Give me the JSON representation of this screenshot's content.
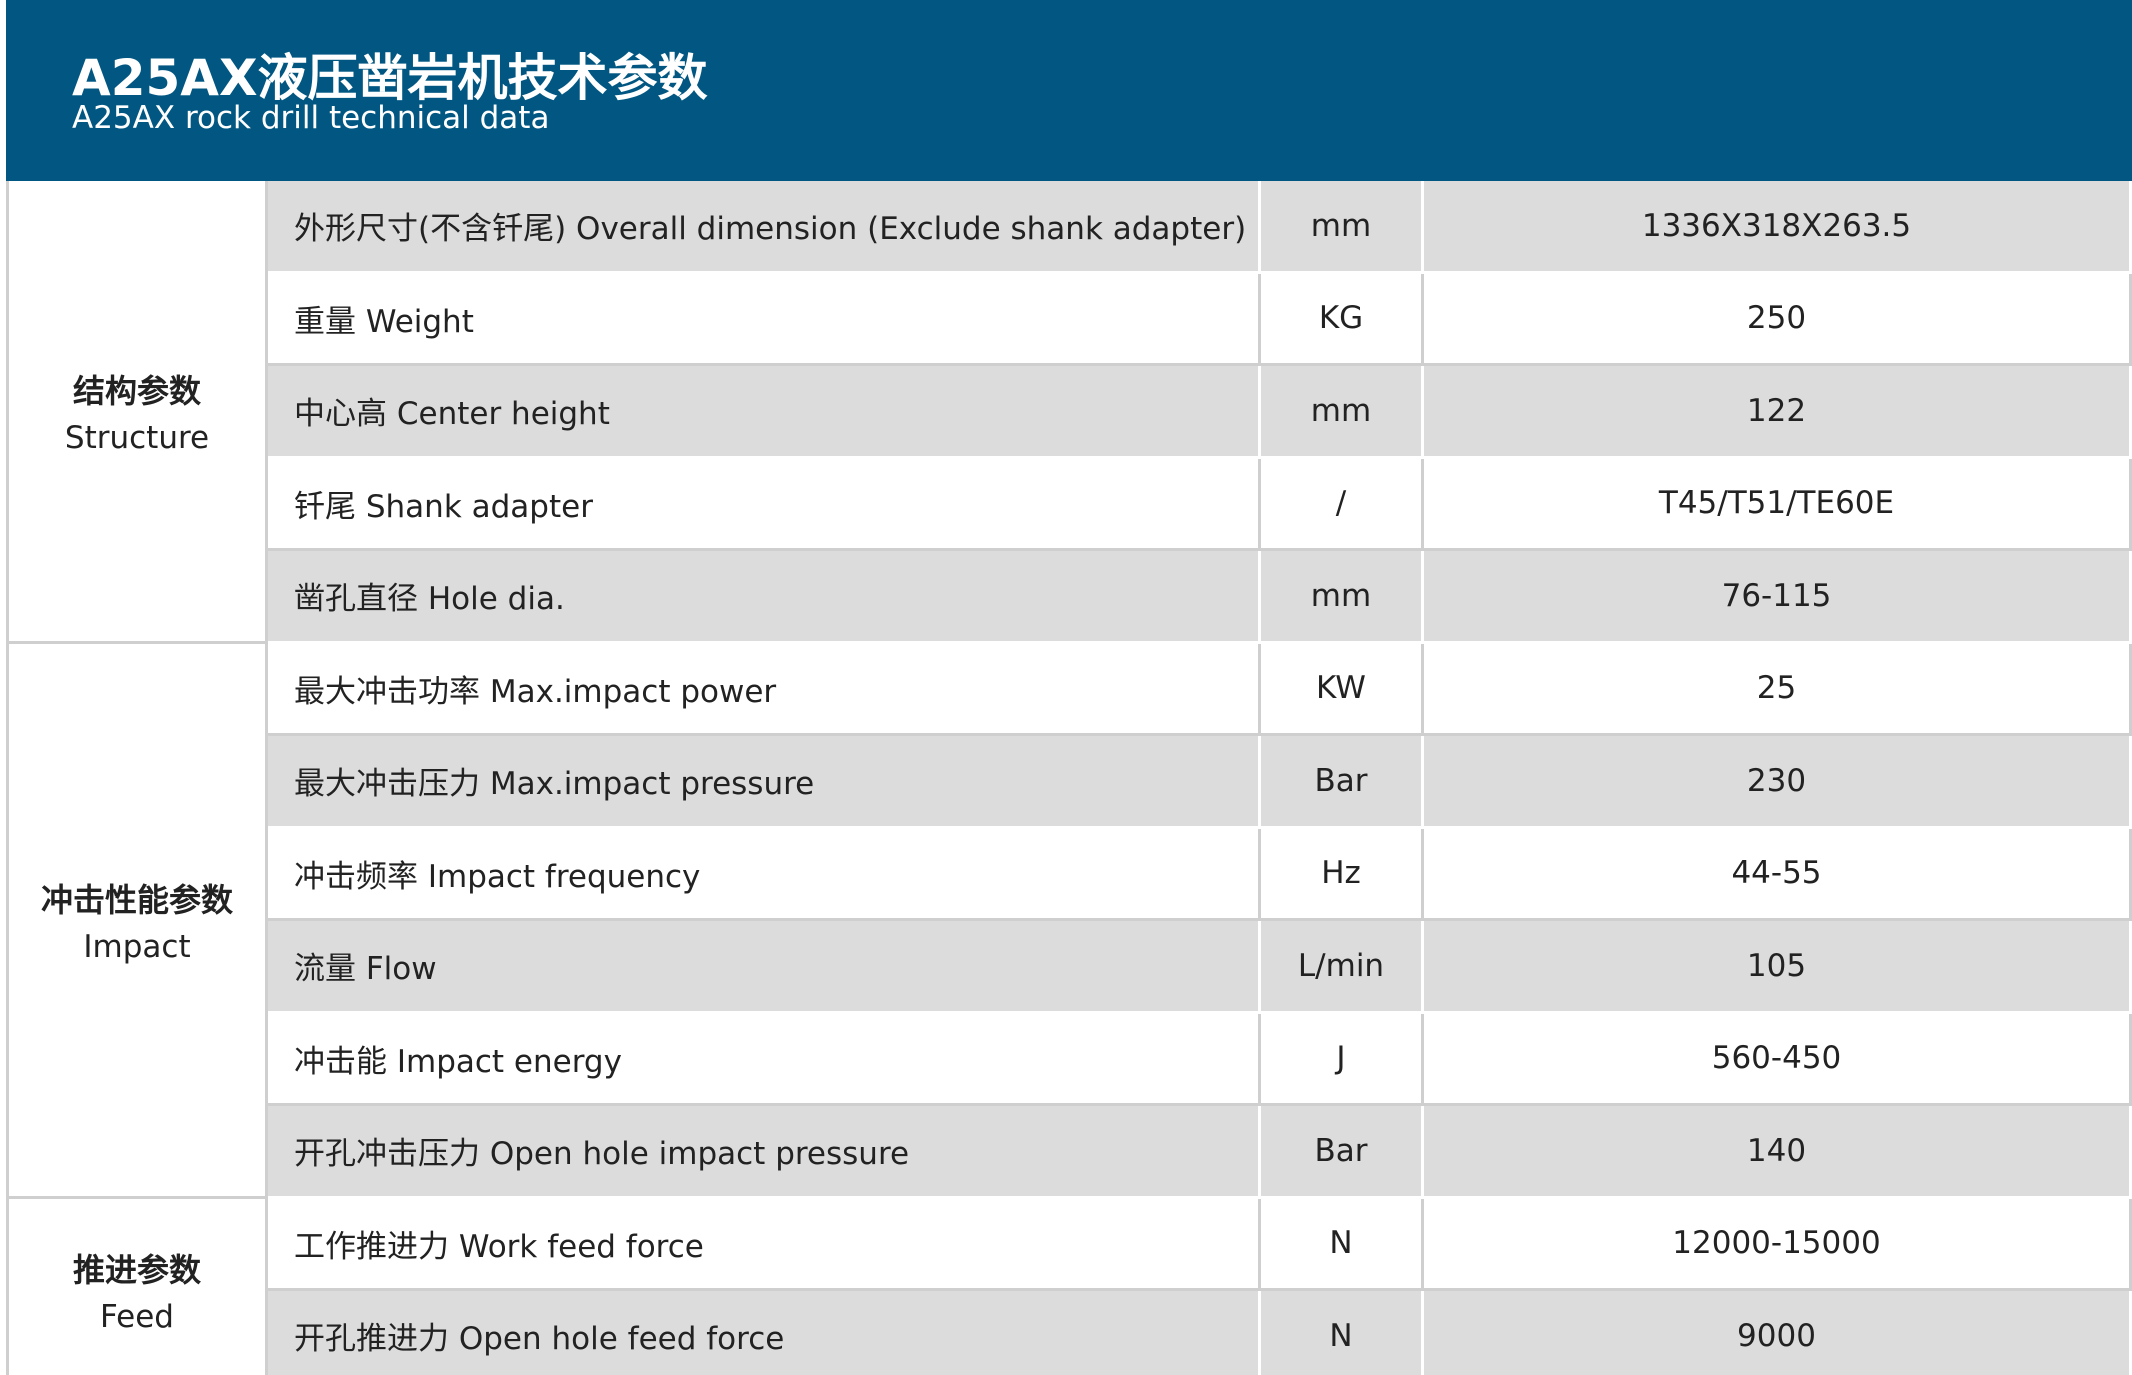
{
  "header": {
    "title": "A25AX液压凿岩机技术参数",
    "subtitle": "A25AX rock drill technical data"
  },
  "table": {
    "groups": [
      {
        "label_zh": "结构参数",
        "label_en": "Structure",
        "rows": [
          [
            "外形尺寸(不含钎尾) Overall dimension (Exclude shank adapter)",
            "mm",
            "1336X318X263.5"
          ],
          [
            "重量 Weight",
            "KG",
            "250"
          ],
          [
            "中心高 Center height",
            "mm",
            "122"
          ],
          [
            "钎尾 Shank adapter",
            "/",
            "T45/T51/TE60E"
          ],
          [
            "凿孔直径 Hole dia.",
            "mm",
            "76-115"
          ]
        ]
      },
      {
        "label_zh": "冲击性能参数",
        "label_en": "Impact",
        "rows": [
          [
            "最大冲击功率 Max.impact power",
            "KW",
            "25"
          ],
          [
            "最大冲击压力 Max.impact pressure",
            "Bar",
            "230"
          ],
          [
            "冲击频率 Impact frequency",
            "Hz",
            "44-55"
          ],
          [
            "流量 Flow",
            "L/min",
            "105"
          ],
          [
            "冲击能 Impact energy",
            "J",
            "560-450"
          ],
          [
            "开孔冲击压力 Open hole impact pressure",
            "Bar",
            "140"
          ]
        ]
      },
      {
        "label_zh": "推进参数",
        "label_en": "Feed",
        "rows": [
          [
            "工作推进力 Work feed force",
            "N",
            "12000-15000"
          ],
          [
            "开孔推进力 Open hole feed force",
            "N",
            "9000"
          ]
        ]
      }
    ]
  }
}
